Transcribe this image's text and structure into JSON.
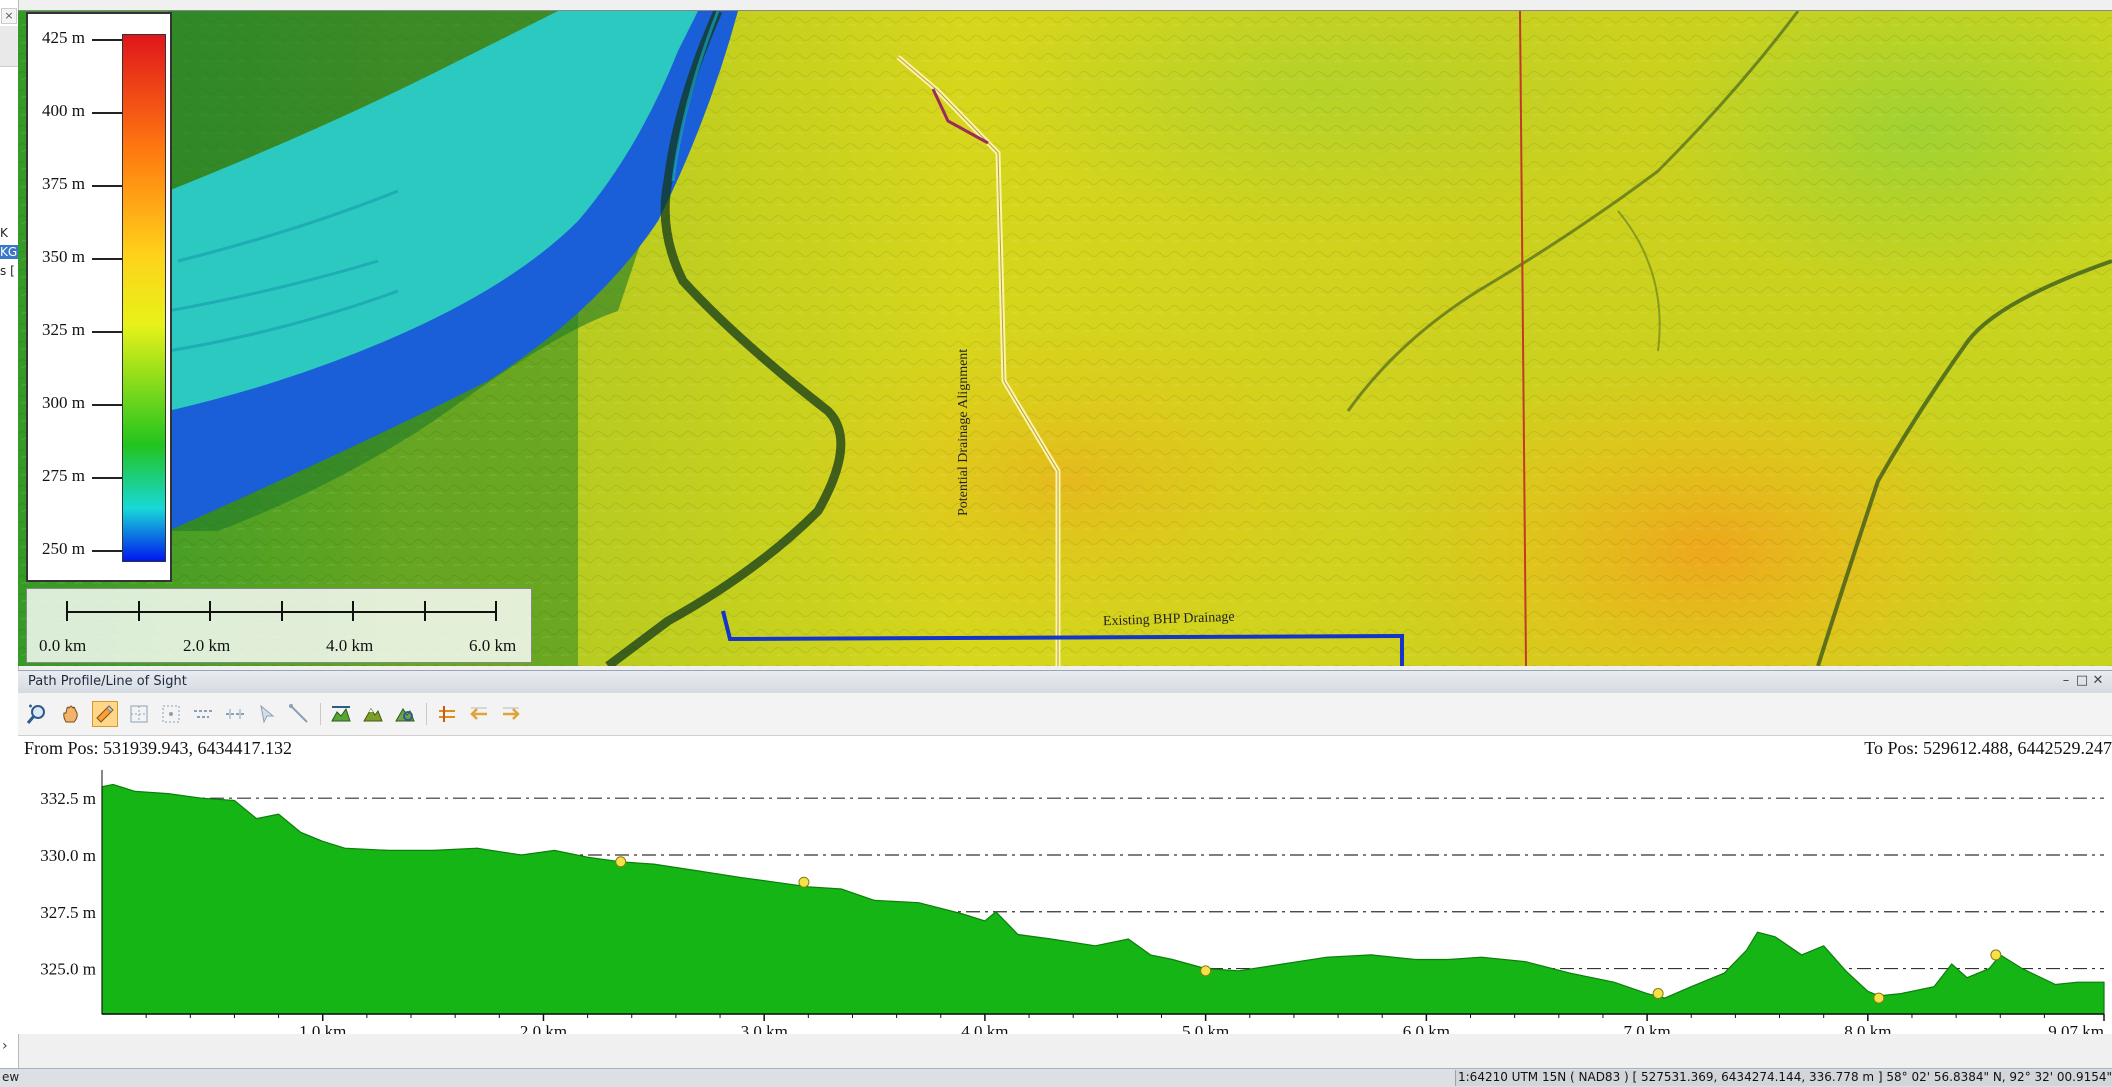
{
  "sidebar": {
    "close_glyph": "×",
    "texts": [
      "K",
      "KG",
      "s ["
    ],
    "expand_glyph": "›"
  },
  "legend": {
    "labels": [
      "425 m",
      "400 m",
      "375 m",
      "350 m",
      "325 m",
      "300 m",
      "275 m",
      "250 m"
    ],
    "colors": [
      "#e0161b",
      "#ff7a10",
      "#ffd21a",
      "#22c41e",
      "#0018ee"
    ]
  },
  "scalebar": {
    "labels": [
      "0.0 km",
      "2.0 km",
      "4.0 km",
      "6.0 km"
    ]
  },
  "map": {
    "alignment_label": "Potential Drainage Alignment",
    "drainage_label": "Existing BHP Drainage"
  },
  "panel": {
    "title": "Path Profile/Line of Sight",
    "minimize_glyph": "–",
    "restore_glyph": "□",
    "close_glyph": "✕"
  },
  "toolbar": {
    "buttons": [
      "zoom-icon",
      "pan-hand-icon",
      "select-icon",
      "grid-icon",
      "grid-dots-icon",
      "align-top-icon",
      "align-middle-icon",
      "pointer-icon",
      "measure-line-icon",
      "terrain-profile-icon",
      "terrain-fill-icon",
      "terrain-view-icon",
      "swap-icon",
      "arrow-left-icon",
      "arrow-right-icon"
    ]
  },
  "profile": {
    "from_pos": "From Pos: 531939.943, 6434417.132",
    "to_pos": "To Pos: 529612.488, 6442529.247"
  },
  "chart_data": {
    "type": "area",
    "title": "",
    "xlabel": "",
    "ylabel": "",
    "x_ticks": [
      "1.0 km",
      "2.0 km",
      "3.0 km",
      "4.0 km",
      "5.0 km",
      "6.0 km",
      "7.0 km",
      "8.0 km",
      "9.07 km"
    ],
    "y_ticks": [
      "325.0 m",
      "327.5 m",
      "330.0 m",
      "332.5 m"
    ],
    "xlim": [
      0,
      9.07
    ],
    "ylim": [
      323,
      333.3
    ],
    "grid": "dash-dot horizontal",
    "fill_color": "#15b515",
    "series": [
      {
        "x": [
          0.0,
          0.05,
          0.15,
          0.3,
          0.45,
          0.6,
          0.7,
          0.8,
          0.9,
          1.0,
          1.1,
          1.3,
          1.5,
          1.7,
          1.9,
          2.05,
          2.2,
          2.35,
          2.5,
          2.7,
          2.9,
          3.05,
          3.2,
          3.35,
          3.5,
          3.7,
          3.9,
          4.0,
          4.05,
          4.15,
          4.3,
          4.5,
          4.65,
          4.75,
          4.85,
          5.0,
          5.15,
          5.35,
          5.55,
          5.75,
          5.95,
          6.1,
          6.25,
          6.45,
          6.65,
          6.85,
          7.0,
          7.08,
          7.2,
          7.35,
          7.45,
          7.5,
          7.58,
          7.7,
          7.8,
          7.9,
          8.0,
          8.05,
          8.15,
          8.3,
          8.38,
          8.45,
          8.55,
          8.6,
          8.7,
          8.85,
          8.95,
          9.07
        ],
        "y": [
          333.0,
          333.1,
          332.8,
          332.7,
          332.5,
          332.4,
          331.6,
          331.8,
          331.0,
          330.6,
          330.3,
          330.2,
          330.2,
          330.3,
          330.0,
          330.2,
          329.9,
          329.7,
          329.6,
          329.3,
          329.0,
          328.8,
          328.6,
          328.5,
          328.0,
          327.9,
          327.4,
          327.1,
          327.5,
          326.5,
          326.3,
          326.0,
          326.3,
          325.6,
          325.4,
          325.0,
          324.9,
          325.2,
          325.5,
          325.6,
          325.4,
          325.4,
          325.5,
          325.3,
          324.8,
          324.4,
          323.9,
          323.7,
          324.2,
          324.8,
          325.8,
          326.6,
          326.4,
          325.6,
          326.0,
          324.9,
          324.0,
          323.8,
          323.9,
          324.2,
          325.2,
          324.6,
          325.0,
          325.6,
          325.0,
          324.3,
          324.4,
          324.4
        ]
      }
    ],
    "markers": {
      "color": "#f5e24a",
      "x": [
        2.35,
        3.18,
        5.0,
        7.05,
        8.05,
        8.58
      ],
      "y": [
        329.7,
        328.8,
        324.9,
        323.9,
        323.7,
        325.6
      ]
    }
  },
  "status": {
    "left": "ew",
    "coords": "1:64210  UTM 15N ( NAD83 ) [ 527531.369, 6434274.144, 336.778 m ]  58° 02' 56.8384\" N, 92° 32' 00.9154\" W"
  }
}
